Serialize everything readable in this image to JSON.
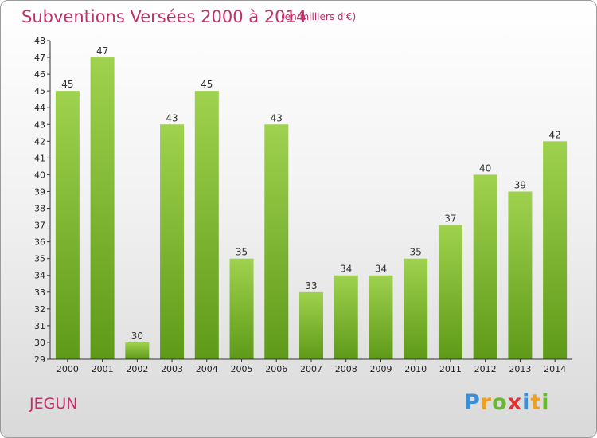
{
  "title": "Subventions Versées 2000 à 2014",
  "unit": "(en milliers d'€)",
  "commune": "JEGUN",
  "logo": {
    "letters": [
      "P",
      "r",
      "o",
      "x",
      "i",
      "t",
      "i"
    ],
    "colors": [
      "#3a8fd8",
      "#f0a020",
      "#6ab832",
      "#e03030",
      "#3a8fd8",
      "#f0a020",
      "#6ab832"
    ]
  },
  "chart_data": {
    "type": "bar",
    "categories": [
      "2000",
      "2001",
      "2002",
      "2003",
      "2004",
      "2005",
      "2006",
      "2007",
      "2008",
      "2009",
      "2010",
      "2011",
      "2012",
      "2013",
      "2014"
    ],
    "values": [
      45,
      47,
      30,
      43,
      45,
      35,
      43,
      33,
      34,
      34,
      35,
      37,
      40,
      39,
      42
    ],
    "ylim": [
      29,
      48
    ],
    "yticks": [
      "29",
      "30",
      "31",
      "32",
      "33",
      "34",
      "35",
      "36",
      "37",
      "38",
      "39",
      "40",
      "41",
      "42",
      "43",
      "44",
      "45",
      "46",
      "47",
      "48"
    ],
    "grid": false,
    "bar_color_top": "#9fd24e",
    "bar_color_bottom": "#5e9a18"
  }
}
